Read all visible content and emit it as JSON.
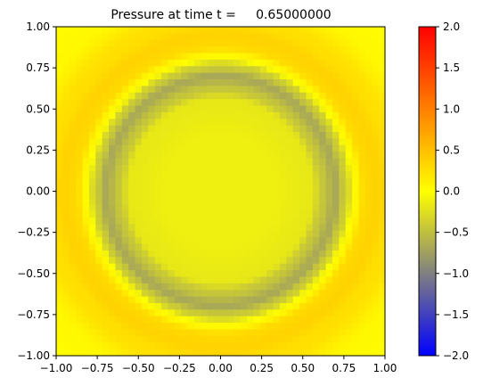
{
  "chart_data": {
    "type": "heatmap",
    "title": "Pressure at time t =     0.65000000",
    "xlabel": "",
    "ylabel": "",
    "xlim": [
      -1.0,
      1.0
    ],
    "ylim": [
      -1.0,
      1.0
    ],
    "xticks": [
      "−1.00",
      "−0.75",
      "−0.50",
      "−0.25",
      "0.00",
      "0.25",
      "0.50",
      "0.75",
      "1.00"
    ],
    "yticks": [
      "1.00",
      "0.75",
      "0.50",
      "0.25",
      "0.00",
      "−0.25",
      "−0.50",
      "−0.75",
      "−1.00"
    ],
    "grid": false,
    "field": {
      "description_of_values": "radial pressure field, value depends on r = sqrt(x^2+y^2)",
      "radial_profile": {
        "r": [
          0.0,
          0.3,
          0.55,
          0.62,
          0.7,
          0.76,
          0.82,
          0.88,
          0.95,
          1.05,
          1.25,
          1.42
        ],
        "p": [
          -0.12,
          -0.12,
          -0.18,
          -0.45,
          -0.68,
          -0.4,
          0.05,
          0.3,
          0.35,
          0.25,
          0.05,
          0.02
        ]
      },
      "grid_cells": 50
    },
    "colorbar": {
      "min": -2.0,
      "max": 2.0,
      "ticks": [
        "2.0",
        "1.5",
        "1.0",
        "0.5",
        "0.0",
        "−0.5",
        "−1.0",
        "−1.5",
        "−2.0"
      ],
      "colors": [
        {
          "value": -2.0,
          "color": "#0000ff"
        },
        {
          "value": -1.0,
          "color": "#808080"
        },
        {
          "value": 0.0,
          "color": "#ffff00"
        },
        {
          "value": 2.0,
          "color": "#ff0000"
        }
      ]
    }
  }
}
